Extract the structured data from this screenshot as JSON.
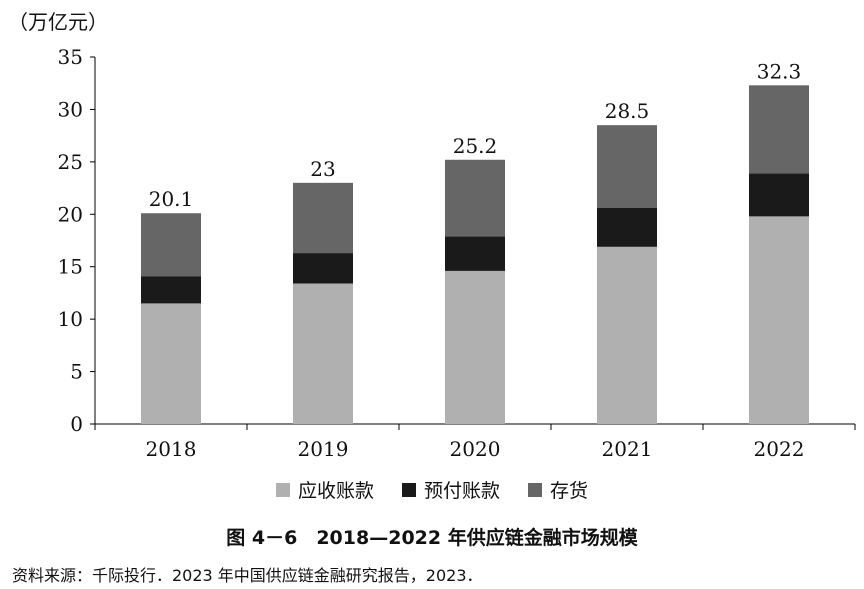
{
  "chart_data": {
    "type": "bar",
    "stacked": true,
    "unit_label": "（万亿元）",
    "categories": [
      "2018",
      "2019",
      "2020",
      "2021",
      "2022"
    ],
    "series": [
      {
        "name": "应收账款",
        "color": "#b0b0b0",
        "values": [
          11.5,
          13.4,
          14.6,
          16.9,
          19.8
        ]
      },
      {
        "name": "预付账款",
        "color": "#1a1a1a",
        "values": [
          2.6,
          2.9,
          3.3,
          3.7,
          4.1
        ]
      },
      {
        "name": "存货",
        "color": "#666666",
        "values": [
          6.0,
          6.7,
          7.3,
          7.9,
          8.4
        ]
      }
    ],
    "totals": [
      "20.1",
      "23",
      "25.2",
      "28.5",
      "32.3"
    ],
    "ylim": [
      0,
      35
    ],
    "yticks": [
      0,
      5,
      10,
      15,
      20,
      25,
      30,
      35
    ],
    "grid": false,
    "legend_position": "bottom"
  },
  "caption": "图 4－6　2018—2022 年供应链金融市场规模",
  "source": "资料来源：千际投行．2023 年中国供应链金融研究报告，2023．"
}
